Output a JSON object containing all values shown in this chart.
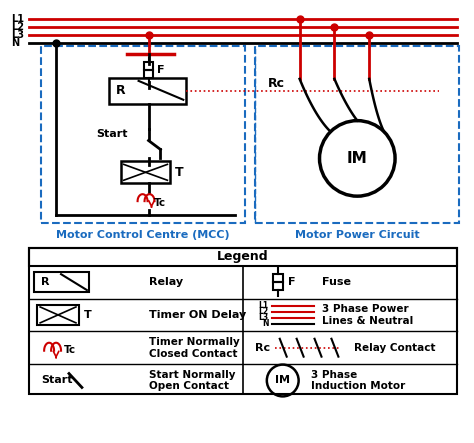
{
  "bg_color": "#ffffff",
  "line_red": "#cc0000",
  "line_black": "#000000",
  "dashed_blue": "#1a6bbf",
  "mcc_label": "Motor Control Centre (MCC)",
  "power_label": "Motor Power Circuit",
  "legend_title": "Legend"
}
